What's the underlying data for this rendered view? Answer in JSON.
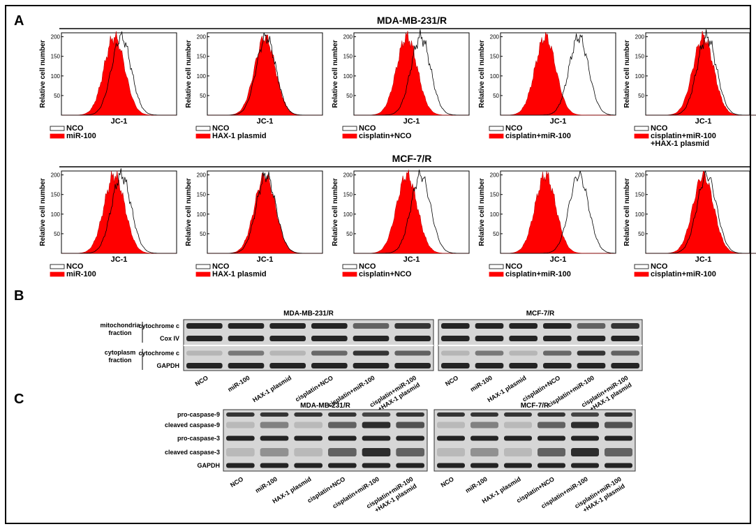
{
  "panel_a": {
    "label": "A",
    "y_label": "Relative cell number",
    "x_label": "JC-1",
    "ylim": [
      0,
      210
    ],
    "yticks": [
      50,
      100,
      150,
      200
    ],
    "rows": [
      {
        "title": "MDA-MB-231/R",
        "legends": [
          [
            [
              "NCO"
            ],
            [
              "miR-100"
            ]
          ],
          [
            [
              "NCO"
            ],
            [
              "HAX-1 plasmid"
            ]
          ],
          [
            [
              "NCO"
            ],
            [
              "cisplatin+NCO"
            ]
          ],
          [
            [
              "NCO"
            ],
            [
              "cisplatin+miR-100"
            ]
          ],
          [
            [
              "NCO"
            ],
            [
              "cisplatin+miR-100",
              "+HAX-1 plasmid"
            ]
          ]
        ]
      },
      {
        "title": "MCF-7/R",
        "legends": [
          [
            [
              "NCO"
            ],
            [
              "miR-100"
            ]
          ],
          [
            [
              "NCO"
            ],
            [
              "HAX-1 plasmid"
            ]
          ],
          [
            [
              "NCO"
            ],
            [
              "cisplatin+NCO"
            ]
          ],
          [
            [
              "NCO"
            ],
            [
              "cisplatin+miR-100"
            ]
          ],
          [
            [
              "NCO"
            ],
            [
              "cisplatin+miR-100"
            ]
          ]
        ]
      }
    ]
  },
  "panel_b": {
    "label": "B",
    "blots": [
      "MDA-MB-231/R",
      "MCF-7/R"
    ],
    "groups": [
      {
        "name": [
          "mitochondria",
          "fraction"
        ],
        "rows": [
          "cytochrome c",
          "Cox IV"
        ]
      },
      {
        "name": [
          "cytoplasm",
          "fraction"
        ],
        "rows": [
          "cytochrome c",
          "GAPDH"
        ]
      }
    ],
    "lanes": [
      [
        "NCO"
      ],
      [
        "miR-100"
      ],
      [
        "HAX-1 plasmid"
      ],
      [
        "cisplatin+NCO"
      ],
      [
        "cisplatin+miR-100"
      ],
      [
        "cisplatin+miR-100",
        "+HAX-1 plasmid"
      ]
    ]
  },
  "panel_c": {
    "label": "C",
    "blots": [
      "MDA-MB-231/R",
      "MCF-7/R"
    ],
    "rows": [
      "pro-caspase-9",
      "cleaved caspase-9",
      "pro-caspase-3",
      "cleaved caspase-3",
      "GAPDH"
    ],
    "lanes": [
      [
        "NCO"
      ],
      [
        "miR-100"
      ],
      [
        "HAX-1 plasmid"
      ],
      [
        "cisplatin+NCO"
      ],
      [
        "cisplatin+miR-100"
      ],
      [
        "cisplatin+miR-100",
        "+HAX-1 plasmid"
      ]
    ]
  }
}
